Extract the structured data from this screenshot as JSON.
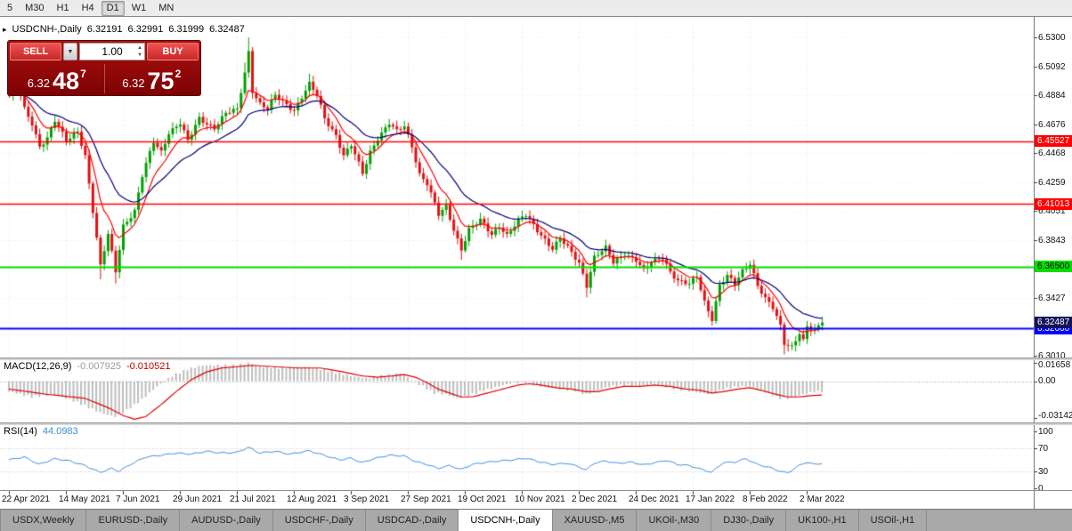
{
  "colors": {
    "up": "#00a000",
    "down": "#e01010",
    "ma_fast": "#ff0000",
    "ma_slow": "#00007a",
    "macd_hist": "#bdbdbd",
    "macd_signal": "#e00000",
    "rsi": "#3c8fd8",
    "grid": "#e6e6e6",
    "level_red": "#ff0000",
    "level_green": "#00dd00",
    "level_blue": "#0000ff",
    "current_label_bg": "#14145a"
  },
  "toolbar": {
    "periods": [
      {
        "label": "5",
        "active": false
      },
      {
        "label": "M30",
        "active": false
      },
      {
        "label": "H1",
        "active": false
      },
      {
        "label": "H4",
        "active": false
      },
      {
        "label": "D1",
        "active": true
      },
      {
        "label": "W1",
        "active": false
      },
      {
        "label": "MN",
        "active": false
      }
    ]
  },
  "chart_header": {
    "symbol_period": "USDCNH-,Daily",
    "open": "6.32191",
    "high": "6.32991",
    "low": "6.31999",
    "close": "6.32487"
  },
  "trade_panel": {
    "sell_label": "SELL",
    "buy_label": "BUY",
    "volume": "1.00",
    "sell_price": {
      "big": "6.32",
      "large": "48",
      "sup": "7"
    },
    "buy_price": {
      "big": "6.32",
      "large": "75",
      "sup": "2"
    }
  },
  "price_axis": {
    "ticks": [
      "6.5300",
      "6.5092",
      "6.4884",
      "6.4676",
      "6.4468",
      "6.4259",
      "6.4051",
      "6.3843",
      "6.3635",
      "6.3427",
      "6.3218",
      "6.3010"
    ]
  },
  "levels": [
    {
      "price": 6.45527,
      "label": "6.45527",
      "color": "#ff0000",
      "text": "#ffffff"
    },
    {
      "price": 6.41013,
      "label": "6.41013",
      "color": "#ff0000",
      "text": "#ffffff"
    },
    {
      "price": 6.365,
      "label": "6.36500",
      "color": "#00dd00",
      "text": "#000000"
    },
    {
      "price": 6.3206,
      "label": "6.32060",
      "color": "#0000ff",
      "text": "#ffffff"
    }
  ],
  "current_price_label": {
    "price": 6.32487,
    "label": "6.32487"
  },
  "date_axis": {
    "labels": [
      "22 Apr 2021",
      "14 May 2021",
      "7 Jun 2021",
      "29 Jun 2021",
      "21 Jul 2021",
      "12 Aug 2021",
      "3 Sep 2021",
      "27 Sep 2021",
      "19 Oct 2021",
      "10 Nov 2021",
      "2 Dec 2021",
      "24 Dec 2021",
      "17 Jan 2022",
      "8 Feb 2022",
      "2 Mar 2022"
    ]
  },
  "macd_panel": {
    "name": "MACD(12,26,9)",
    "value_main": "-0.007925",
    "value_signal": "-0.010521",
    "scale_top": "0.01658",
    "scale_zero": "0.00",
    "scale_bottom": "-0.03142"
  },
  "rsi_panel": {
    "name": "RSI(14)",
    "value": "44.0983",
    "scale": [
      "100",
      "70",
      "30",
      "0"
    ]
  },
  "tabbar": {
    "tabs": [
      {
        "label": "USDX,Weekly",
        "active": false
      },
      {
        "label": "EURUSD-,Daily",
        "active": false
      },
      {
        "label": "AUDUSD-,Daily",
        "active": false
      },
      {
        "label": "USDCHF-,Daily",
        "active": false
      },
      {
        "label": "USDCAD-,Daily",
        "active": false
      },
      {
        "label": "USDCNH-,Daily",
        "active": true
      },
      {
        "label": "XAUUSD-,M5",
        "active": false
      },
      {
        "label": "UKOil-,M30",
        "active": false
      },
      {
        "label": "DJ30-,Daily",
        "active": false
      },
      {
        "label": "UK100-,H1",
        "active": false
      },
      {
        "label": "USOil-,H1",
        "active": false
      }
    ]
  },
  "chart_data": {
    "type": "candlestick",
    "symbol": "USDCNH-",
    "timeframe": "Daily",
    "current_bar": {
      "open": 6.32191,
      "high": 6.32991,
      "low": 6.31999,
      "close": 6.32487
    },
    "bid": 6.32487,
    "ask": 6.32752,
    "y_range": [
      6.301,
      6.53
    ],
    "note": "close_anchors are approximate visual reconstruction points [barIndex, price]; bars between anchors are interpolated",
    "close_anchors": [
      [
        0,
        6.488
      ],
      [
        2,
        6.497
      ],
      [
        4,
        6.478
      ],
      [
        6,
        6.468
      ],
      [
        8,
        6.452
      ],
      [
        10,
        6.458
      ],
      [
        12,
        6.47
      ],
      [
        15,
        6.455
      ],
      [
        18,
        6.463
      ],
      [
        20,
        6.445
      ],
      [
        22,
        6.405
      ],
      [
        24,
        6.365
      ],
      [
        26,
        6.388
      ],
      [
        28,
        6.362
      ],
      [
        30,
        6.395
      ],
      [
        33,
        6.405
      ],
      [
        35,
        6.43
      ],
      [
        38,
        6.455
      ],
      [
        40,
        6.448
      ],
      [
        42,
        6.462
      ],
      [
        45,
        6.468
      ],
      [
        47,
        6.455
      ],
      [
        50,
        6.472
      ],
      [
        54,
        6.465
      ],
      [
        57,
        6.475
      ],
      [
        60,
        6.478
      ],
      [
        62,
        6.505
      ],
      [
        63,
        6.52
      ],
      [
        64,
        6.492
      ],
      [
        66,
        6.482
      ],
      [
        68,
        6.478
      ],
      [
        70,
        6.488
      ],
      [
        73,
        6.482
      ],
      [
        75,
        6.478
      ],
      [
        79,
        6.496
      ],
      [
        81,
        6.488
      ],
      [
        83,
        6.472
      ],
      [
        86,
        6.46
      ],
      [
        88,
        6.445
      ],
      [
        90,
        6.452
      ],
      [
        93,
        6.432
      ],
      [
        95,
        6.448
      ],
      [
        97,
        6.458
      ],
      [
        100,
        6.468
      ],
      [
        102,
        6.462
      ],
      [
        104,
        6.466
      ],
      [
        106,
        6.452
      ],
      [
        108,
        6.432
      ],
      [
        110,
        6.425
      ],
      [
        113,
        6.402
      ],
      [
        115,
        6.408
      ],
      [
        117,
        6.392
      ],
      [
        119,
        6.378
      ],
      [
        121,
        6.392
      ],
      [
        124,
        6.398
      ],
      [
        127,
        6.388
      ],
      [
        129,
        6.395
      ],
      [
        131,
        6.388
      ],
      [
        134,
        6.398
      ],
      [
        136,
        6.402
      ],
      [
        138,
        6.395
      ],
      [
        141,
        6.385
      ],
      [
        143,
        6.378
      ],
      [
        145,
        6.385
      ],
      [
        148,
        6.375
      ],
      [
        150,
        6.368
      ],
      [
        152,
        6.352
      ],
      [
        154,
        6.372
      ],
      [
        157,
        6.378
      ],
      [
        159,
        6.368
      ],
      [
        162,
        6.375
      ],
      [
        165,
        6.37
      ],
      [
        167,
        6.362
      ],
      [
        169,
        6.368
      ],
      [
        172,
        6.372
      ],
      [
        174,
        6.362
      ],
      [
        176,
        6.355
      ],
      [
        179,
        6.352
      ],
      [
        181,
        6.358
      ],
      [
        183,
        6.34
      ],
      [
        185,
        6.328
      ],
      [
        187,
        6.352
      ],
      [
        189,
        6.358
      ],
      [
        191,
        6.352
      ],
      [
        193,
        6.362
      ],
      [
        195,
        6.368
      ],
      [
        197,
        6.352
      ],
      [
        199,
        6.342
      ],
      [
        201,
        6.335
      ],
      [
        203,
        6.322
      ],
      [
        204,
        6.31
      ],
      [
        206,
        6.308
      ],
      [
        208,
        6.318
      ],
      [
        209,
        6.312
      ],
      [
        210,
        6.322
      ],
      [
        212,
        6.318
      ],
      [
        214,
        6.32487
      ]
    ],
    "wick_events": [
      {
        "i": 0,
        "high": 6.506
      },
      {
        "i": 24,
        "low": 6.356
      },
      {
        "i": 28,
        "low": 6.353
      },
      {
        "i": 62,
        "high": 6.512
      },
      {
        "i": 63,
        "high": 6.53
      },
      {
        "i": 79,
        "high": 6.504
      },
      {
        "i": 119,
        "low": 6.37
      },
      {
        "i": 152,
        "low": 6.343
      },
      {
        "i": 185,
        "low": 6.324
      },
      {
        "i": 204,
        "low": 6.302
      },
      {
        "i": 205,
        "low": 6.304
      }
    ],
    "levels": [
      6.45527,
      6.41013,
      6.365,
      6.3206
    ],
    "macd": {
      "params": "12,26,9",
      "main": -0.007925,
      "signal": -0.010521,
      "scale": [
        0.01658,
        0.0,
        -0.03142
      ],
      "hist_anchors": [
        [
          0,
          -0.008
        ],
        [
          6,
          -0.012
        ],
        [
          12,
          -0.01
        ],
        [
          18,
          -0.016
        ],
        [
          24,
          -0.024
        ],
        [
          28,
          -0.027
        ],
        [
          31,
          -0.022
        ],
        [
          35,
          -0.014
        ],
        [
          39,
          -0.004
        ],
        [
          43,
          0.004
        ],
        [
          47,
          0.009
        ],
        [
          51,
          0.012
        ],
        [
          55,
          0.012
        ],
        [
          60,
          0.012
        ],
        [
          63,
          0.014
        ],
        [
          66,
          0.011
        ],
        [
          72,
          0.01
        ],
        [
          78,
          0.011
        ],
        [
          84,
          0.008
        ],
        [
          90,
          0.004
        ],
        [
          94,
          0.002
        ],
        [
          98,
          0.004
        ],
        [
          103,
          0.006
        ],
        [
          106,
          0.001
        ],
        [
          109,
          -0.004
        ],
        [
          112,
          -0.009
        ],
        [
          115,
          -0.01
        ],
        [
          118,
          -0.013
        ],
        [
          121,
          -0.011
        ],
        [
          125,
          -0.007
        ],
        [
          129,
          -0.004
        ],
        [
          133,
          -0.001
        ],
        [
          136,
          -0.001
        ],
        [
          140,
          -0.004
        ],
        [
          145,
          -0.006
        ],
        [
          149,
          -0.007
        ],
        [
          152,
          -0.01
        ],
        [
          155,
          -0.007
        ],
        [
          158,
          -0.004
        ],
        [
          162,
          -0.003
        ],
        [
          166,
          -0.004
        ],
        [
          170,
          -0.002
        ],
        [
          174,
          -0.005
        ],
        [
          178,
          -0.007
        ],
        [
          182,
          -0.009
        ],
        [
          185,
          -0.01
        ],
        [
          188,
          -0.006
        ],
        [
          192,
          -0.004
        ],
        [
          195,
          -0.004
        ],
        [
          199,
          -0.008
        ],
        [
          203,
          -0.013
        ],
        [
          206,
          -0.013
        ],
        [
          209,
          -0.01
        ],
        [
          212,
          -0.008
        ],
        [
          214,
          -0.0079
        ]
      ],
      "signal_anchors": [
        [
          0,
          -0.006
        ],
        [
          10,
          -0.01
        ],
        [
          20,
          -0.013
        ],
        [
          26,
          -0.02
        ],
        [
          30,
          -0.026
        ],
        [
          33,
          -0.029
        ],
        [
          36,
          -0.027
        ],
        [
          40,
          -0.018
        ],
        [
          44,
          -0.008
        ],
        [
          48,
          0.001
        ],
        [
          52,
          0.007
        ],
        [
          56,
          0.01
        ],
        [
          60,
          0.011
        ],
        [
          64,
          0.012
        ],
        [
          70,
          0.011
        ],
        [
          76,
          0.01
        ],
        [
          82,
          0.01
        ],
        [
          88,
          0.007
        ],
        [
          93,
          0.004
        ],
        [
          97,
          0.003
        ],
        [
          101,
          0.004
        ],
        [
          104,
          0.005
        ],
        [
          107,
          0.003
        ],
        [
          110,
          -0.001
        ],
        [
          113,
          -0.006
        ],
        [
          116,
          -0.009
        ],
        [
          119,
          -0.012
        ],
        [
          122,
          -0.012
        ],
        [
          126,
          -0.009
        ],
        [
          130,
          -0.006
        ],
        [
          134,
          -0.003
        ],
        [
          137,
          -0.002
        ],
        [
          140,
          -0.003
        ],
        [
          144,
          -0.005
        ],
        [
          148,
          -0.006
        ],
        [
          152,
          -0.008
        ],
        [
          155,
          -0.008
        ],
        [
          158,
          -0.006
        ],
        [
          162,
          -0.004
        ],
        [
          166,
          -0.004
        ],
        [
          170,
          -0.003
        ],
        [
          174,
          -0.004
        ],
        [
          178,
          -0.006
        ],
        [
          182,
          -0.007
        ],
        [
          185,
          -0.009
        ],
        [
          188,
          -0.008
        ],
        [
          192,
          -0.006
        ],
        [
          195,
          -0.005
        ],
        [
          198,
          -0.007
        ],
        [
          202,
          -0.01
        ],
        [
          205,
          -0.012
        ],
        [
          208,
          -0.012
        ],
        [
          211,
          -0.011
        ],
        [
          214,
          -0.0105
        ]
      ]
    },
    "rsi": {
      "period": 14,
      "last": 44.0983,
      "anchors": [
        [
          0,
          50
        ],
        [
          4,
          55
        ],
        [
          8,
          42
        ],
        [
          12,
          52
        ],
        [
          16,
          48
        ],
        [
          20,
          40
        ],
        [
          24,
          28
        ],
        [
          27,
          35
        ],
        [
          29,
          30
        ],
        [
          32,
          42
        ],
        [
          36,
          55
        ],
        [
          40,
          58
        ],
        [
          44,
          62
        ],
        [
          48,
          60
        ],
        [
          52,
          65
        ],
        [
          56,
          62
        ],
        [
          60,
          63
        ],
        [
          63,
          72
        ],
        [
          66,
          62
        ],
        [
          70,
          65
        ],
        [
          74,
          60
        ],
        [
          79,
          66
        ],
        [
          83,
          58
        ],
        [
          87,
          50
        ],
        [
          90,
          53
        ],
        [
          93,
          45
        ],
        [
          96,
          52
        ],
        [
          100,
          58
        ],
        [
          104,
          57
        ],
        [
          107,
          47
        ],
        [
          110,
          42
        ],
        [
          113,
          35
        ],
        [
          116,
          40
        ],
        [
          119,
          33
        ],
        [
          122,
          42
        ],
        [
          126,
          46
        ],
        [
          129,
          48
        ],
        [
          133,
          50
        ],
        [
          136,
          53
        ],
        [
          140,
          46
        ],
        [
          143,
          42
        ],
        [
          147,
          44
        ],
        [
          150,
          38
        ],
        [
          152,
          32
        ],
        [
          154,
          44
        ],
        [
          157,
          48
        ],
        [
          160,
          44
        ],
        [
          164,
          46
        ],
        [
          167,
          41
        ],
        [
          170,
          45
        ],
        [
          173,
          49
        ],
        [
          176,
          42
        ],
        [
          179,
          40
        ],
        [
          183,
          32
        ],
        [
          185,
          28
        ],
        [
          188,
          45
        ],
        [
          191,
          46
        ],
        [
          194,
          52
        ],
        [
          197,
          42
        ],
        [
          200,
          37
        ],
        [
          203,
          30
        ],
        [
          205,
          27
        ],
        [
          208,
          40
        ],
        [
          210,
          46
        ],
        [
          212,
          42
        ],
        [
          214,
          44.1
        ]
      ]
    }
  }
}
